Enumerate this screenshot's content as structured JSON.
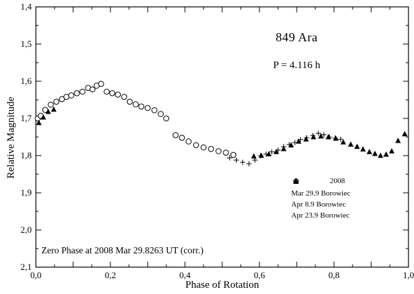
{
  "chart_data": {
    "type": "scatter",
    "title": "849 Ara",
    "subtitle": "P = 4.116 h",
    "xlabel": "Phase of Rotation",
    "ylabel": "Relative Magnitude",
    "annotation": "Zero Phase at 2008 Mar 29.8263 UT (corr.)",
    "xlim": [
      0.0,
      1.0
    ],
    "ylim": [
      1.4,
      2.1
    ],
    "y_inverted": true,
    "grid": false,
    "x_ticks_major": [
      0.0,
      0.2,
      0.4,
      0.6,
      0.8,
      1.0
    ],
    "x_tick_labels": [
      "0,0",
      "0,2",
      "0,4",
      "0,6",
      "0,8",
      "1,0"
    ],
    "x_minor_step": 0.05,
    "y_ticks_major": [
      1.4,
      1.5,
      1.6,
      1.7,
      1.8,
      1.9,
      2.0,
      2.1
    ],
    "y_tick_labels": [
      "1,4",
      "1,5",
      "1,6",
      "1,7",
      "1,8",
      "1,9",
      "2,0",
      "2,1"
    ],
    "y_minor_step": 0.05,
    "legend_title": "2008",
    "legend_position": "lower-right-inside",
    "series": [
      {
        "name": "Mar 29.9 Borowiec",
        "marker": "open-circle",
        "points": [
          [
            0.005,
            1.7
          ],
          [
            0.013,
            1.693
          ],
          [
            0.025,
            1.677
          ],
          [
            0.04,
            1.663
          ],
          [
            0.055,
            1.655
          ],
          [
            0.07,
            1.648
          ],
          [
            0.082,
            1.642
          ],
          [
            0.095,
            1.638
          ],
          [
            0.11,
            1.632
          ],
          [
            0.125,
            1.628
          ],
          [
            0.14,
            1.618
          ],
          [
            0.152,
            1.622
          ],
          [
            0.163,
            1.612
          ],
          [
            0.175,
            1.607
          ],
          [
            0.19,
            1.628
          ],
          [
            0.205,
            1.632
          ],
          [
            0.22,
            1.636
          ],
          [
            0.237,
            1.642
          ],
          [
            0.252,
            1.655
          ],
          [
            0.268,
            1.662
          ],
          [
            0.283,
            1.668
          ],
          [
            0.3,
            1.672
          ],
          [
            0.318,
            1.678
          ],
          [
            0.335,
            1.688
          ],
          [
            0.35,
            1.7
          ],
          [
            0.375,
            1.745
          ],
          [
            0.392,
            1.752
          ],
          [
            0.41,
            1.762
          ],
          [
            0.43,
            1.772
          ],
          [
            0.45,
            1.778
          ],
          [
            0.47,
            1.782
          ],
          [
            0.49,
            1.788
          ],
          [
            0.51,
            1.792
          ],
          [
            0.53,
            1.798
          ]
        ]
      },
      {
        "name": "Apr 8.9 Borowiec",
        "marker": "plus",
        "points": [
          [
            0.52,
            1.806
          ],
          [
            0.538,
            1.812
          ],
          [
            0.555,
            1.818
          ],
          [
            0.572,
            1.822
          ],
          [
            0.588,
            1.812
          ],
          [
            0.603,
            1.8
          ],
          [
            0.618,
            1.796
          ],
          [
            0.633,
            1.79
          ],
          [
            0.65,
            1.785
          ],
          [
            0.665,
            1.776
          ],
          [
            0.68,
            1.77
          ],
          [
            0.695,
            1.765
          ],
          [
            0.71,
            1.757
          ],
          [
            0.727,
            1.752
          ],
          [
            0.743,
            1.746
          ],
          [
            0.758,
            1.74
          ],
          [
            0.773,
            1.744
          ],
          [
            0.788,
            1.75
          ],
          [
            0.803,
            1.753
          ],
          [
            0.818,
            1.756
          ]
        ]
      },
      {
        "name": "Apr 23.9 Borowiec",
        "marker": "filled-triangle",
        "points": [
          [
            0.008,
            1.712
          ],
          [
            0.02,
            1.697
          ],
          [
            0.033,
            1.682
          ],
          [
            0.048,
            1.676
          ],
          [
            0.585,
            1.802
          ],
          [
            0.605,
            1.8
          ],
          [
            0.625,
            1.796
          ],
          [
            0.645,
            1.79
          ],
          [
            0.665,
            1.782
          ],
          [
            0.685,
            1.772
          ],
          [
            0.705,
            1.762
          ],
          [
            0.725,
            1.756
          ],
          [
            0.745,
            1.75
          ],
          [
            0.765,
            1.748
          ],
          [
            0.785,
            1.75
          ],
          [
            0.805,
            1.754
          ],
          [
            0.825,
            1.764
          ],
          [
            0.845,
            1.77
          ],
          [
            0.862,
            1.776
          ],
          [
            0.878,
            1.783
          ],
          [
            0.895,
            1.79
          ],
          [
            0.91,
            1.795
          ],
          [
            0.925,
            1.8
          ],
          [
            0.94,
            1.797
          ],
          [
            0.955,
            1.788
          ],
          [
            0.972,
            1.76
          ],
          [
            0.99,
            1.742
          ]
        ]
      }
    ]
  }
}
